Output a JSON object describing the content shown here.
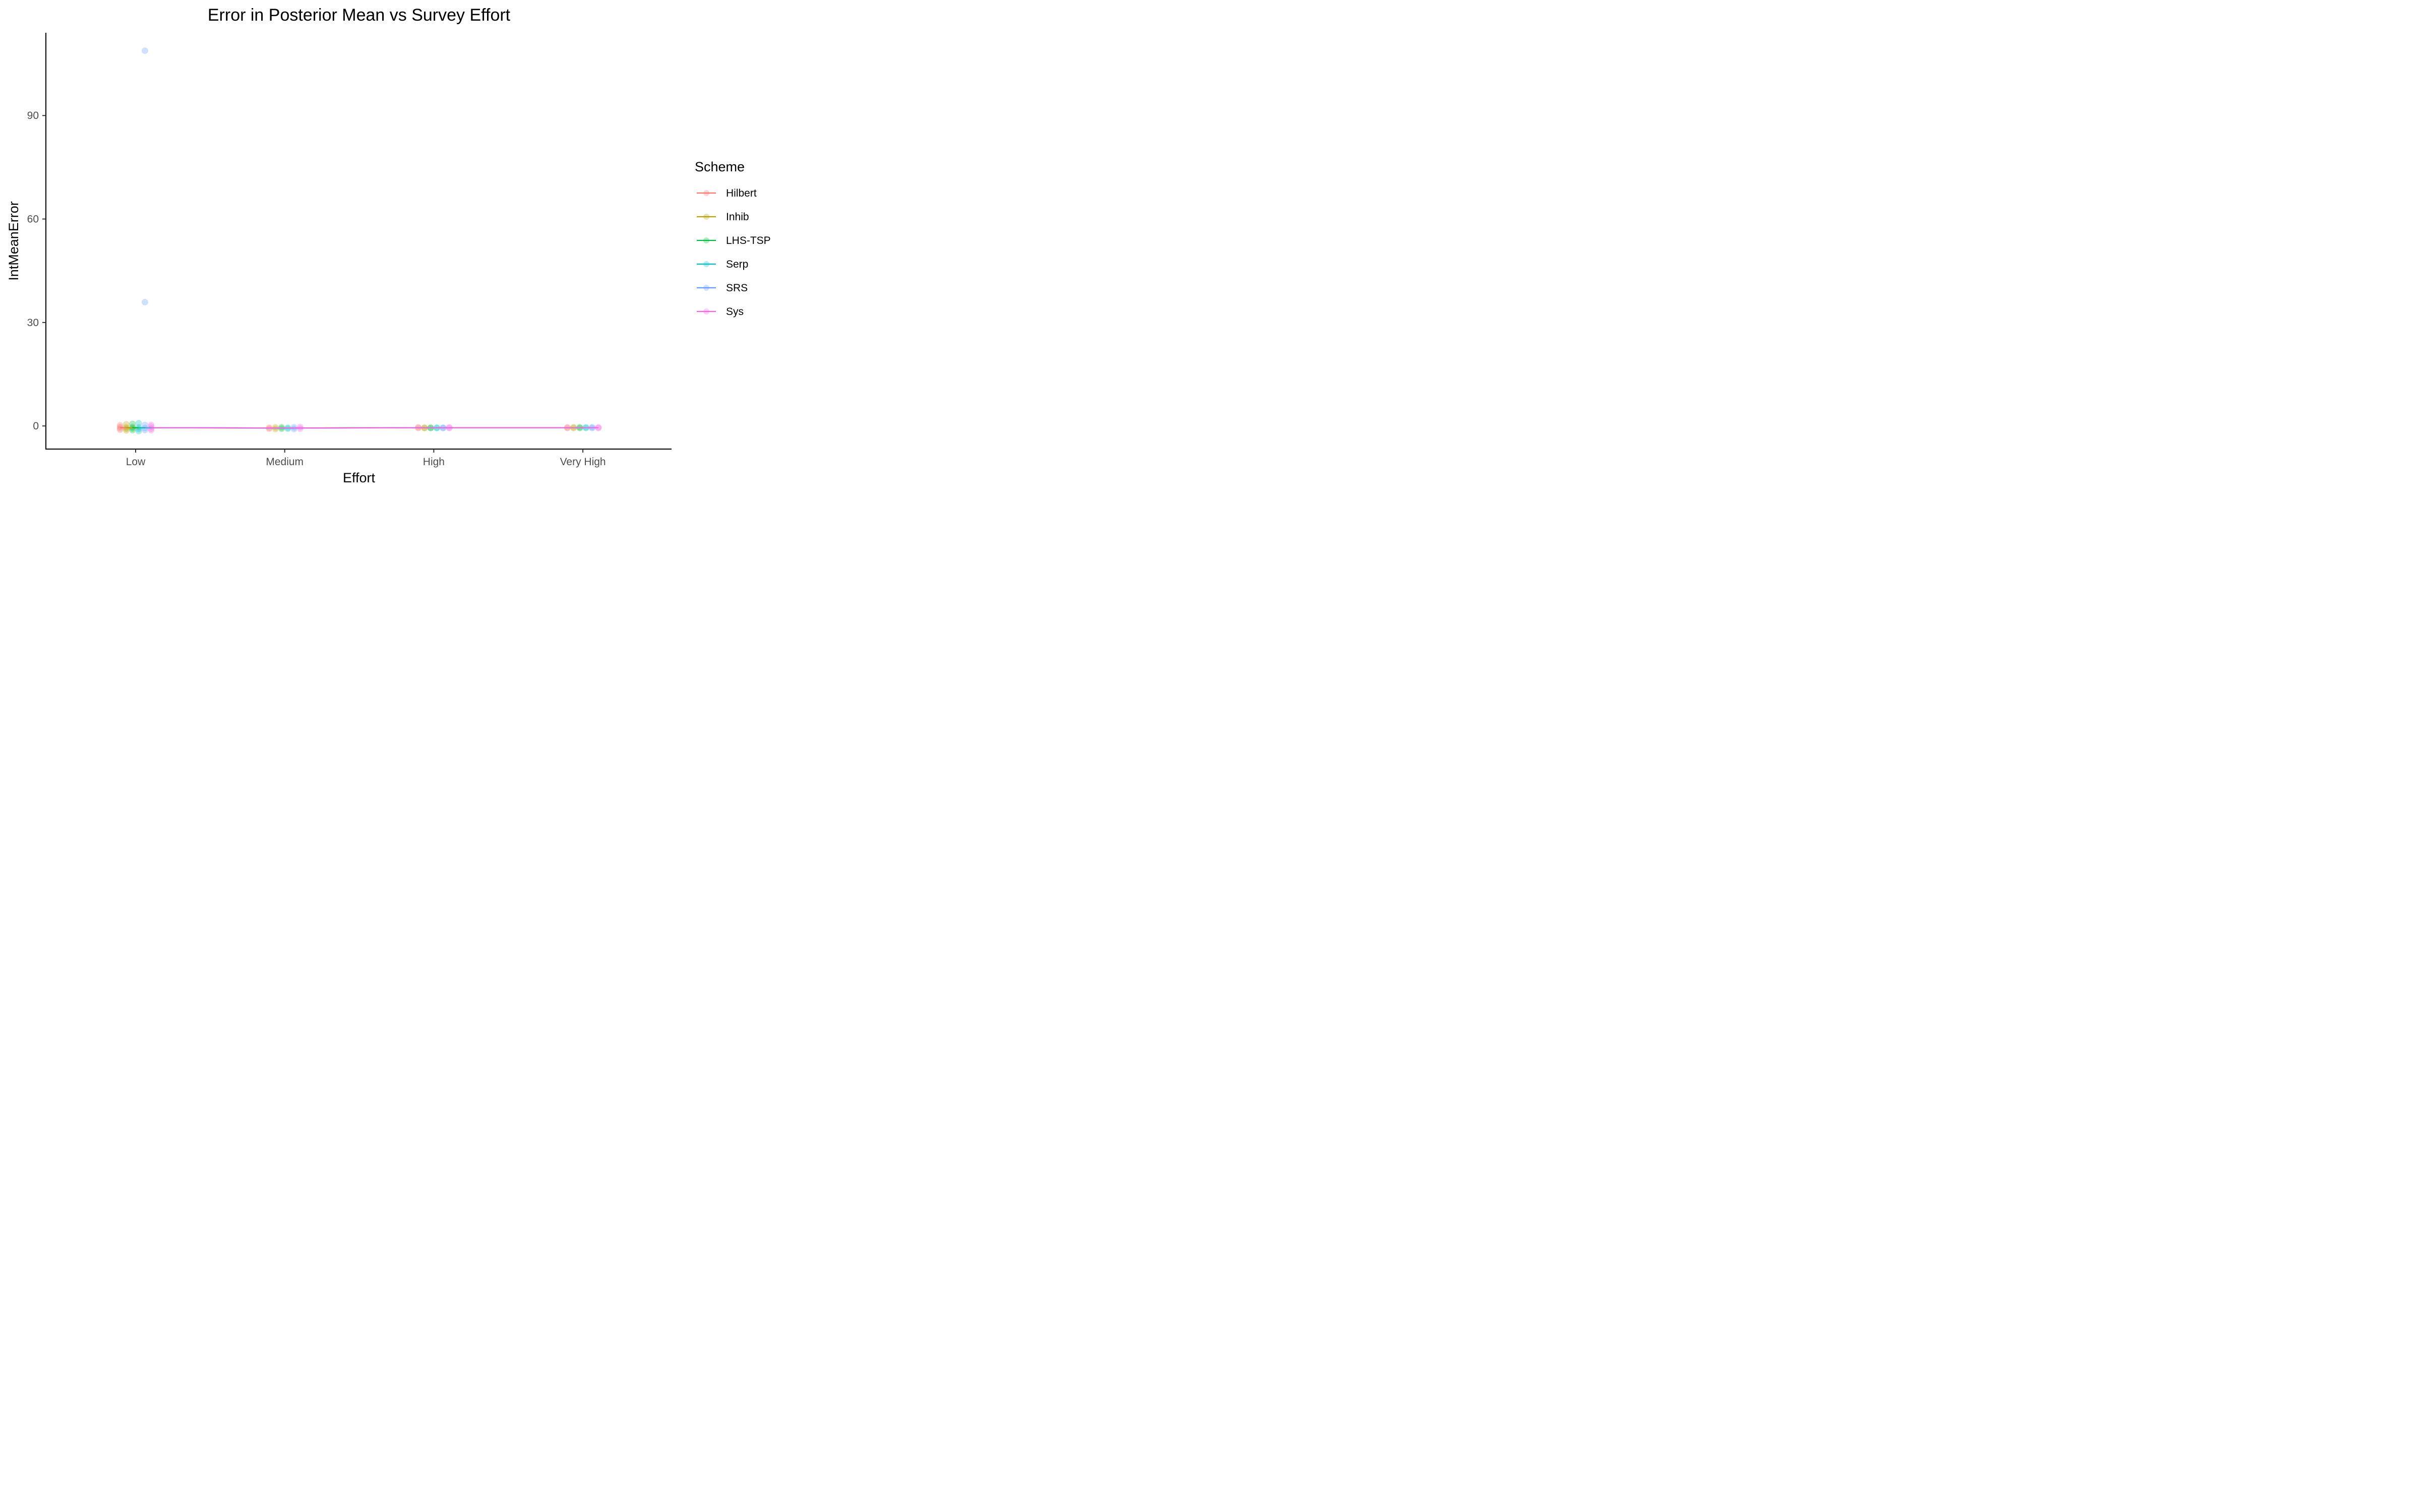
{
  "chart_data": {
    "type": "scatter",
    "title": "Error in Posterior Mean vs Survey Effort",
    "xlabel": "Effort",
    "ylabel": "IntMeanError",
    "categories": [
      "Low",
      "Medium",
      "High",
      "Very High"
    ],
    "ylim": [
      -6.7,
      114
    ],
    "yticks": [
      0,
      30,
      60,
      90
    ],
    "grid": false,
    "legend": {
      "title": "Scheme",
      "position": "right"
    },
    "series": [
      {
        "name": "Hilbert",
        "color": "#F8766D",
        "points": [
          [
            0,
            -0.3
          ],
          [
            0,
            -0.7
          ],
          [
            0,
            0.2
          ],
          [
            0,
            -1.1
          ],
          [
            1,
            -0.5
          ],
          [
            1,
            -0.8
          ],
          [
            2,
            -0.4
          ],
          [
            2,
            -0.6
          ],
          [
            3,
            -0.4
          ],
          [
            3,
            -0.6
          ]
        ],
        "line": [
          -0.5,
          -0.6,
          -0.5,
          -0.5
        ]
      },
      {
        "name": "Inhib",
        "color": "#B79F00",
        "points": [
          [
            0,
            -0.4
          ],
          [
            0,
            0.5
          ],
          [
            0,
            -1.3
          ],
          [
            0,
            -0.8
          ],
          [
            1,
            -0.4
          ],
          [
            1,
            -0.9
          ],
          [
            2,
            -0.5
          ],
          [
            2,
            -0.6
          ],
          [
            3,
            -0.4
          ],
          [
            3,
            -0.6
          ]
        ],
        "line": [
          -0.5,
          -0.6,
          -0.5,
          -0.5
        ]
      },
      {
        "name": "LHS-TSP",
        "color": "#00BA38",
        "points": [
          [
            0,
            0.6
          ],
          [
            0,
            -0.3
          ],
          [
            0,
            -1.2
          ],
          [
            0,
            -0.7
          ],
          [
            1,
            -0.4
          ],
          [
            1,
            -0.8
          ],
          [
            2,
            -0.5
          ],
          [
            2,
            -0.6
          ],
          [
            3,
            -0.4
          ],
          [
            3,
            -0.6
          ]
        ],
        "line": [
          -0.5,
          -0.6,
          -0.5,
          -0.5
        ]
      },
      {
        "name": "Serp",
        "color": "#00BFC4",
        "points": [
          [
            0,
            0.8
          ],
          [
            0,
            -0.4
          ],
          [
            0,
            -1.5
          ],
          [
            0,
            -0.9
          ],
          [
            1,
            -0.5
          ],
          [
            1,
            -0.8
          ],
          [
            2,
            -0.5
          ],
          [
            2,
            -0.6
          ],
          [
            3,
            -0.4
          ],
          [
            3,
            -0.6
          ]
        ],
        "line": [
          -0.5,
          -0.6,
          -0.5,
          -0.5
        ]
      },
      {
        "name": "SRS",
        "color": "#619CFF",
        "points": [
          [
            0,
            108.8
          ],
          [
            0,
            35.9
          ],
          [
            0,
            0.3
          ],
          [
            0,
            -0.6
          ],
          [
            0,
            -1.2
          ],
          [
            1,
            -0.4
          ],
          [
            1,
            -0.9
          ],
          [
            2,
            -0.5
          ],
          [
            2,
            -0.6
          ],
          [
            3,
            -0.4
          ],
          [
            3,
            -0.6
          ]
        ],
        "line": [
          -0.5,
          -0.6,
          -0.5,
          -0.5
        ]
      },
      {
        "name": "Sys",
        "color": "#F564E3",
        "points": [
          [
            0,
            -0.2
          ],
          [
            0,
            -0.8
          ],
          [
            0,
            0.3
          ],
          [
            0,
            -1.2
          ],
          [
            1,
            -0.3
          ],
          [
            1,
            -0.8
          ],
          [
            2,
            -0.4
          ],
          [
            2,
            -0.6
          ],
          [
            3,
            -0.4
          ],
          [
            3,
            -0.6
          ]
        ],
        "line": [
          -0.5,
          -0.6,
          -0.5,
          -0.5
        ]
      }
    ]
  }
}
